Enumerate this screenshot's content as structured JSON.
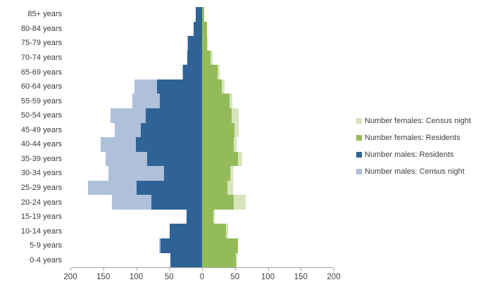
{
  "chart_data": {
    "type": "bar",
    "subtype": "population-pyramid",
    "title": "",
    "xlabel": "",
    "ylabel": "",
    "grid": false,
    "legend_position": "right",
    "categories": [
      "85+ years",
      "80-84 years",
      "75-79 years",
      "70-74 years",
      "65-69 years",
      "60-64 years",
      "55-59 years",
      "50-54 years",
      "45-49 years",
      "40-44 years",
      "35-39 years",
      "30-34 years",
      "25-29 years",
      "20-24 years",
      "15-19 years",
      "10-14 years",
      "5-9 years",
      "0-4 years"
    ],
    "series": [
      {
        "name": "Number males: Census night",
        "side": "left",
        "role": "census",
        "color": "#AFC0DB",
        "values": [
          10,
          13,
          23,
          23,
          30,
          103,
          106,
          139,
          133,
          154,
          147,
          142,
          173,
          137,
          24,
          49,
          65,
          48
        ]
      },
      {
        "name": "Number males: Residents",
        "side": "left",
        "role": "res",
        "color": "#2F6396",
        "values": [
          10,
          13,
          21,
          23,
          29,
          69,
          64,
          86,
          93,
          101,
          83,
          58,
          100,
          77,
          24,
          49,
          63,
          48
        ]
      },
      {
        "name": "Number females: Residents",
        "side": "right",
        "role": "res",
        "color": "#93BB59",
        "values": [
          3,
          8,
          7,
          13,
          24,
          30,
          42,
          45,
          49,
          48,
          55,
          43,
          38,
          48,
          17,
          36,
          55,
          51
        ]
      },
      {
        "name": "Number females: Census night",
        "side": "right",
        "role": "census",
        "color": "#D7E4BC",
        "values": [
          3,
          8,
          9,
          16,
          27,
          34,
          46,
          56,
          56,
          52,
          61,
          47,
          47,
          66,
          19,
          40,
          55,
          53
        ]
      }
    ],
    "x_axis": {
      "max_each_side": 200,
      "tick_step": 50,
      "tick_labels": [
        "200",
        "150",
        "100",
        "50",
        "0",
        "50",
        "100",
        "150",
        "200"
      ]
    },
    "legend": [
      "Number females: Census night",
      "Number females: Residents",
      "Number males: Residents",
      "Number males: Census night"
    ]
  },
  "colors": {
    "axis": "#A6A6A6",
    "text": "#3F3F3F",
    "background": "#FFFFFF"
  }
}
